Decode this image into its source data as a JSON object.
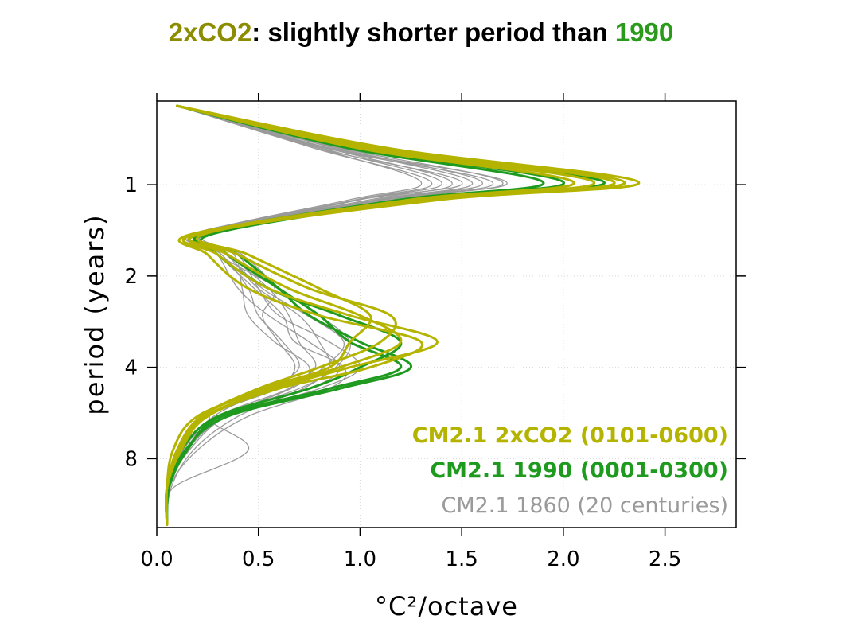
{
  "title": {
    "part1": "2xCO2",
    "part2": ": slightly shorter period than ",
    "part3": "1990",
    "colors": {
      "part1": "#8c8c00",
      "part2": "#000000",
      "part3": "#2a9a1a"
    }
  },
  "chart_data": {
    "type": "line",
    "xlabel": "°C²/octave",
    "ylabel": "period (years)",
    "xlim": [
      0,
      2.85
    ],
    "ylim": [
      0.53,
      13.5
    ],
    "y_scale": "log2",
    "x_ticks": [
      {
        "value": 0.0,
        "label": "0.0"
      },
      {
        "value": 0.5,
        "label": "0.5"
      },
      {
        "value": 1.0,
        "label": "1.0"
      },
      {
        "value": 1.5,
        "label": "1.5"
      },
      {
        "value": 2.0,
        "label": "2.0"
      },
      {
        "value": 2.5,
        "label": "2.5"
      }
    ],
    "y_ticks": [
      {
        "value": 1,
        "label": "1"
      },
      {
        "value": 2,
        "label": "2"
      },
      {
        "value": 4,
        "label": "4"
      },
      {
        "value": 8,
        "label": "8"
      }
    ],
    "grid": true,
    "legend_position": "bottom-right",
    "legend": [
      {
        "label": "CM2.1 2xCO2 (0101-0600)",
        "color": "#b4b400"
      },
      {
        "label": "CM2.1 1990 (0001-0300)",
        "color": "#1e9a1e"
      },
      {
        "label": "CM2.1 1860 (20 centuries)",
        "color": "#9a9a9a"
      }
    ],
    "groups": [
      {
        "name": "CM2.1 1860 (20 centuries)",
        "color": "#9a9a9a",
        "width": 1.3,
        "series": [
          {
            "x": [
              0.1,
              0.8,
              1.3,
              0.95,
              0.2,
              0.3,
              0.4,
              0.55,
              0.75,
              0.9,
              0.75,
              0.3,
              0.12,
              0.05,
              0.05
            ],
            "y": [
              0.55,
              0.76,
              0.98,
              1.12,
              1.45,
              1.7,
              2.2,
              2.7,
              3.3,
              4.0,
              4.7,
              5.8,
              7.5,
              10.0,
              13.2
            ]
          },
          {
            "x": [
              0.1,
              0.78,
              1.35,
              0.98,
              0.22,
              0.35,
              0.55,
              0.65,
              0.7,
              0.78,
              0.6,
              0.25,
              0.1,
              0.05,
              0.05
            ],
            "y": [
              0.55,
              0.76,
              0.98,
              1.12,
              1.45,
              1.7,
              2.2,
              2.7,
              3.3,
              4.0,
              4.7,
              5.8,
              7.5,
              10.0,
              13.2
            ]
          },
          {
            "x": [
              0.1,
              0.82,
              1.4,
              1.0,
              0.25,
              0.4,
              0.5,
              0.6,
              0.85,
              1.0,
              0.8,
              0.35,
              0.15,
              0.06,
              0.05
            ],
            "y": [
              0.55,
              0.76,
              0.98,
              1.12,
              1.45,
              1.7,
              2.2,
              2.7,
              3.3,
              4.0,
              4.7,
              5.8,
              7.5,
              10.0,
              13.2
            ]
          },
          {
            "x": [
              0.1,
              0.85,
              1.45,
              1.05,
              0.18,
              0.32,
              0.45,
              0.5,
              0.62,
              0.7,
              0.55,
              0.28,
              0.13,
              0.05,
              0.05
            ],
            "y": [
              0.55,
              0.76,
              0.98,
              1.12,
              1.45,
              1.7,
              2.2,
              2.7,
              3.3,
              4.0,
              4.7,
              5.8,
              7.5,
              10.0,
              13.2
            ]
          },
          {
            "x": [
              0.1,
              0.8,
              1.5,
              1.0,
              0.2,
              0.3,
              0.6,
              0.8,
              0.95,
              0.88,
              0.7,
              0.32,
              0.12,
              0.05,
              0.05
            ],
            "y": [
              0.55,
              0.76,
              0.98,
              1.12,
              1.45,
              1.7,
              2.2,
              2.7,
              3.3,
              4.0,
              4.7,
              5.8,
              7.5,
              10.0,
              13.2
            ]
          },
          {
            "x": [
              0.1,
              0.88,
              1.55,
              1.08,
              0.22,
              0.38,
              0.42,
              0.45,
              0.58,
              0.75,
              0.65,
              0.3,
              0.14,
              0.06,
              0.05
            ],
            "y": [
              0.55,
              0.76,
              0.98,
              1.12,
              1.45,
              1.7,
              2.2,
              2.7,
              3.3,
              4.0,
              4.7,
              5.8,
              7.5,
              10.0,
              13.2
            ]
          },
          {
            "x": [
              0.1,
              0.9,
              1.6,
              1.1,
              0.25,
              0.35,
              0.5,
              0.7,
              0.8,
              0.85,
              0.72,
              0.4,
              0.18,
              0.07,
              0.05
            ],
            "y": [
              0.55,
              0.76,
              0.98,
              1.12,
              1.45,
              1.7,
              2.2,
              2.7,
              3.3,
              4.0,
              4.7,
              5.8,
              7.5,
              10.0,
              13.2
            ]
          },
          {
            "x": [
              0.1,
              0.84,
              1.65,
              1.12,
              0.2,
              0.3,
              0.48,
              0.62,
              0.68,
              0.92,
              0.85,
              0.45,
              0.2,
              0.06,
              0.05
            ],
            "y": [
              0.55,
              0.76,
              0.98,
              1.12,
              1.45,
              1.7,
              2.2,
              2.7,
              3.3,
              4.0,
              4.7,
              5.8,
              7.5,
              10.0,
              13.2
            ]
          },
          {
            "x": [
              0.1,
              0.92,
              1.7,
              1.15,
              0.24,
              0.42,
              0.58,
              0.52,
              0.6,
              0.68,
              0.58,
              0.26,
              0.45,
              0.08,
              0.05
            ],
            "y": [
              0.55,
              0.76,
              0.98,
              1.12,
              1.45,
              1.7,
              2.2,
              2.7,
              3.3,
              4.0,
              4.7,
              5.8,
              7.5,
              10.0,
              13.2
            ]
          },
          {
            "x": [
              0.1,
              0.86,
              1.72,
              1.1,
              0.18,
              0.34,
              0.52,
              0.74,
              0.92,
              0.82,
              0.66,
              0.34,
              0.16,
              0.05,
              0.05
            ],
            "y": [
              0.55,
              0.76,
              0.98,
              1.12,
              1.45,
              1.7,
              2.2,
              2.7,
              3.3,
              4.0,
              4.7,
              5.8,
              7.5,
              10.0,
              13.2
            ]
          }
        ]
      },
      {
        "name": "CM2.1 1990 (0001-0300)",
        "color": "#1e9a1e",
        "width": 3,
        "series": [
          {
            "x": [
              0.1,
              0.95,
              1.9,
              1.2,
              0.22,
              0.4,
              0.6,
              0.75,
              1.0,
              1.25,
              0.9,
              0.35,
              0.14,
              0.06,
              0.05
            ],
            "y": [
              0.55,
              0.76,
              0.98,
              1.12,
              1.45,
              1.7,
              2.2,
              2.7,
              3.3,
              4.0,
              4.7,
              5.8,
              7.5,
              10.0,
              13.2
            ]
          },
          {
            "x": [
              0.1,
              1.0,
              2.0,
              1.25,
              0.25,
              0.3,
              0.55,
              0.9,
              1.2,
              1.0,
              0.75,
              0.3,
              0.12,
              0.05,
              0.05
            ],
            "y": [
              0.55,
              0.76,
              0.98,
              1.12,
              1.45,
              1.7,
              2.2,
              2.7,
              3.3,
              4.0,
              4.7,
              5.8,
              7.5,
              10.0,
              13.2
            ]
          },
          {
            "x": [
              0.1,
              1.05,
              2.2,
              1.3,
              0.28,
              0.35,
              0.6,
              0.8,
              0.95,
              1.2,
              0.85,
              0.32,
              0.15,
              0.06,
              0.05
            ],
            "y": [
              0.55,
              0.76,
              0.98,
              1.12,
              1.45,
              1.7,
              2.2,
              2.7,
              3.3,
              4.0,
              4.7,
              5.8,
              7.5,
              10.0,
              13.2
            ]
          }
        ]
      },
      {
        "name": "CM2.1 2xCO2 (0101-0600)",
        "color": "#b4b400",
        "width": 3,
        "series": [
          {
            "x": [
              0.1,
              1.0,
              2.05,
              1.25,
              0.2,
              0.4,
              0.75,
              1.15,
              1.1,
              0.8,
              0.5,
              0.22,
              0.1,
              0.05,
              0.05
            ],
            "y": [
              0.55,
              0.76,
              0.98,
              1.12,
              1.45,
              1.7,
              2.2,
              2.7,
              3.3,
              4.0,
              4.7,
              5.8,
              7.5,
              10.0,
              13.2
            ]
          },
          {
            "x": [
              0.1,
              1.05,
              2.15,
              1.3,
              0.18,
              0.25,
              0.45,
              0.8,
              1.3,
              1.05,
              0.6,
              0.25,
              0.12,
              0.05,
              0.05
            ],
            "y": [
              0.55,
              0.76,
              0.98,
              1.12,
              1.45,
              1.7,
              2.2,
              2.7,
              3.3,
              4.0,
              4.7,
              5.8,
              7.5,
              10.0,
              13.2
            ]
          },
          {
            "x": [
              0.1,
              1.1,
              2.25,
              1.35,
              0.22,
              0.35,
              0.65,
              1.0,
              1.2,
              0.9,
              0.55,
              0.2,
              0.08,
              0.05,
              0.05
            ],
            "y": [
              0.55,
              0.76,
              0.98,
              1.12,
              1.45,
              1.7,
              2.2,
              2.7,
              3.3,
              4.0,
              4.7,
              5.8,
              7.5,
              10.0,
              13.2
            ]
          },
          {
            "x": [
              0.1,
              1.15,
              2.37,
              1.4,
              0.2,
              0.3,
              0.55,
              0.95,
              1.38,
              0.95,
              0.58,
              0.24,
              0.11,
              0.05,
              0.05
            ],
            "y": [
              0.55,
              0.76,
              0.98,
              1.12,
              1.45,
              1.7,
              2.2,
              2.7,
              3.3,
              4.0,
              4.7,
              5.8,
              7.5,
              10.0,
              13.2
            ]
          },
          {
            "x": [
              0.1,
              1.08,
              2.3,
              1.32,
              0.24,
              0.45,
              0.8,
              1.05,
              0.95,
              0.85,
              0.52,
              0.22,
              0.1,
              0.05,
              0.05
            ],
            "y": [
              0.55,
              0.76,
              0.98,
              1.12,
              1.45,
              1.7,
              2.2,
              2.7,
              3.3,
              4.0,
              4.7,
              5.8,
              7.5,
              10.0,
              13.2
            ]
          }
        ]
      }
    ]
  }
}
